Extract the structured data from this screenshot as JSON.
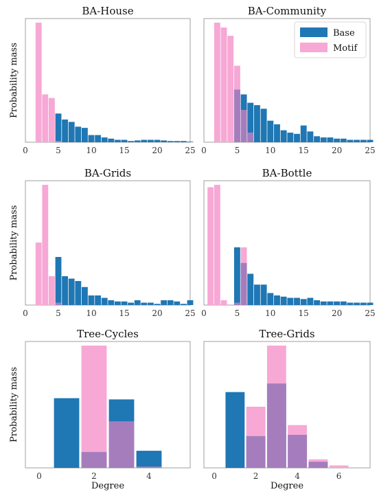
{
  "colors": {
    "base": "#1f77b4",
    "motif": "#f7a8d5",
    "overlap": "#a57dbd",
    "frame": "#888888"
  },
  "legend": {
    "placement": "upper right",
    "entries": [
      {
        "label": "Base",
        "series": "base"
      },
      {
        "label": "Motif",
        "series": "motif"
      }
    ]
  },
  "ylabel": "Probability mass",
  "xlabel": "Degree",
  "chart_data": [
    {
      "type": "bar",
      "title": "BA-House",
      "xlim": [
        0,
        25
      ],
      "ylim": [
        0,
        1.0
      ],
      "xticks": [
        "0",
        "5",
        "10",
        "15",
        "20",
        "25"
      ],
      "bin_width": 1,
      "series": [
        {
          "name": "Base",
          "x": [
            5,
            6,
            7,
            8,
            9,
            10,
            11,
            12,
            13,
            14,
            15,
            16,
            17,
            18,
            19,
            20,
            21,
            22,
            23,
            24,
            25
          ],
          "values": [
            0.24,
            0.19,
            0.17,
            0.13,
            0.12,
            0.06,
            0.06,
            0.04,
            0.03,
            0.02,
            0.02,
            0.01,
            0.015,
            0.02,
            0.02,
            0.02,
            0.015,
            0.01,
            0.01,
            0.01,
            0.005
          ]
        },
        {
          "name": "Motif",
          "x": [
            2,
            3,
            4,
            5
          ],
          "values": [
            1.0,
            0.4,
            0.37,
            0.01
          ]
        }
      ]
    },
    {
      "type": "bar",
      "title": "BA-Community",
      "xlim": [
        0,
        25
      ],
      "ylim": [
        0,
        1.0
      ],
      "xticks": [
        "0",
        "5",
        "10",
        "15",
        "20",
        "25"
      ],
      "bin_width": 1,
      "series": [
        {
          "name": "Base",
          "x": [
            5,
            6,
            7,
            8,
            9,
            10,
            11,
            12,
            13,
            14,
            15,
            16,
            17,
            18,
            19,
            20,
            21,
            22,
            23,
            24,
            25
          ],
          "values": [
            0.44,
            0.4,
            0.33,
            0.31,
            0.28,
            0.18,
            0.15,
            0.1,
            0.08,
            0.07,
            0.14,
            0.09,
            0.05,
            0.04,
            0.04,
            0.03,
            0.03,
            0.02,
            0.02,
            0.02,
            0.02
          ]
        },
        {
          "name": "Motif",
          "x": [
            2,
            3,
            4,
            5,
            6,
            7
          ],
          "values": [
            1.0,
            0.96,
            0.89,
            0.64,
            0.27,
            0.08
          ]
        }
      ]
    },
    {
      "type": "bar",
      "title": "BA-Grids",
      "xlim": [
        0,
        25
      ],
      "ylim": [
        0,
        1.0
      ],
      "xticks": [
        "0",
        "5",
        "10",
        "15",
        "20",
        "25"
      ],
      "bin_width": 1,
      "series": [
        {
          "name": "Base",
          "x": [
            5,
            6,
            7,
            8,
            9,
            10,
            11,
            12,
            13,
            14,
            15,
            16,
            17,
            18,
            19,
            20,
            21,
            22,
            23,
            24,
            25
          ],
          "values": [
            0.4,
            0.24,
            0.22,
            0.2,
            0.15,
            0.08,
            0.08,
            0.06,
            0.04,
            0.03,
            0.03,
            0.02,
            0.04,
            0.02,
            0.02,
            0.01,
            0.04,
            0.04,
            0.03,
            0.01,
            0.04
          ]
        },
        {
          "name": "Motif",
          "x": [
            2,
            3,
            4,
            5
          ],
          "values": [
            0.52,
            1.0,
            0.24,
            0.02
          ]
        }
      ]
    },
    {
      "type": "bar",
      "title": "BA-Bottle",
      "xlim": [
        0,
        25
      ],
      "ylim": [
        0,
        1.0
      ],
      "xticks": [
        "0",
        "5",
        "10",
        "15",
        "20",
        "25"
      ],
      "bin_width": 1,
      "series": [
        {
          "name": "Base",
          "x": [
            5,
            6,
            7,
            8,
            9,
            10,
            11,
            12,
            13,
            14,
            15,
            16,
            17,
            18,
            19,
            20,
            21,
            22,
            23,
            24,
            25
          ],
          "values": [
            0.48,
            0.35,
            0.26,
            0.17,
            0.17,
            0.1,
            0.08,
            0.07,
            0.06,
            0.06,
            0.05,
            0.06,
            0.04,
            0.03,
            0.03,
            0.03,
            0.03,
            0.02,
            0.02,
            0.02,
            0.02
          ]
        },
        {
          "name": "Motif",
          "x": [
            1,
            2,
            3,
            4,
            5,
            6
          ],
          "values": [
            0.98,
            1.0,
            0.04,
            0.0,
            0.02,
            0.48
          ]
        }
      ]
    },
    {
      "type": "bar",
      "title": "Tree-Cycles",
      "xlim": [
        -0.5,
        5.5
      ],
      "ylim": [
        0,
        1.0
      ],
      "xticks": [
        "0",
        "2",
        "4"
      ],
      "bin_width": 1,
      "series": [
        {
          "name": "Base",
          "x": [
            1,
            2,
            3,
            4
          ],
          "values": [
            0.57,
            0.13,
            0.56,
            0.14
          ]
        },
        {
          "name": "Motif",
          "x": [
            2,
            3,
            4
          ],
          "values": [
            1.0,
            0.38,
            0.01
          ]
        }
      ]
    },
    {
      "type": "bar",
      "title": "Tree-Grids",
      "xlim": [
        -0.5,
        7.5
      ],
      "ylim": [
        0,
        1.0
      ],
      "xticks": [
        "0",
        "2",
        "4",
        "6"
      ],
      "bin_width": 1,
      "series": [
        {
          "name": "Base",
          "x": [
            1,
            2,
            3,
            4,
            5,
            6,
            7
          ],
          "values": [
            0.62,
            0.26,
            0.69,
            0.27,
            0.05,
            0.0,
            0.0
          ]
        },
        {
          "name": "Motif",
          "x": [
            2,
            3,
            4,
            5,
            6,
            7
          ],
          "values": [
            0.5,
            1.0,
            0.35,
            0.07,
            0.02,
            0.0
          ]
        }
      ]
    }
  ]
}
